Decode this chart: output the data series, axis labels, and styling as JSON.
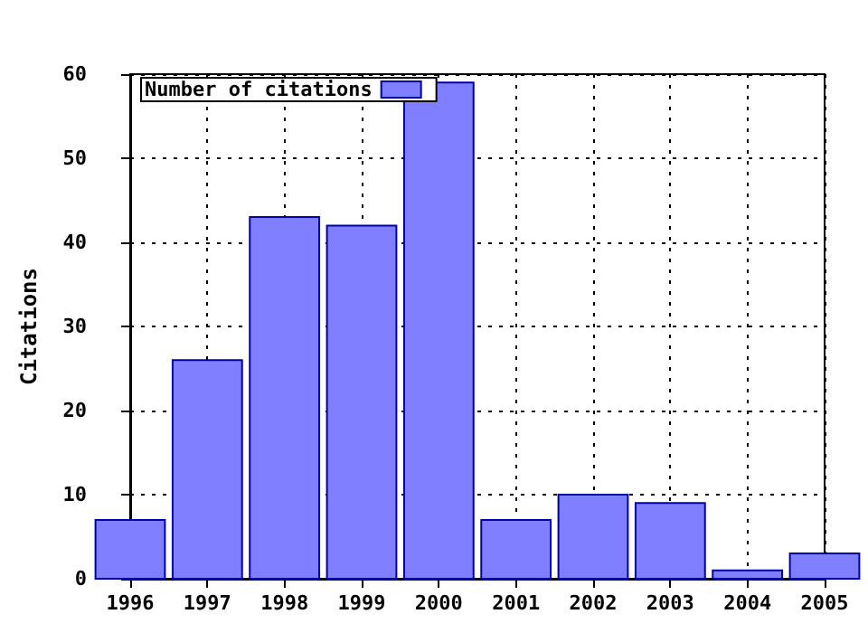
{
  "chart_data": {
    "type": "bar",
    "ylabel": "Citations",
    "x": [
      1996,
      1997,
      1998,
      1999,
      2000,
      2001,
      2002,
      2003,
      2004,
      2005
    ],
    "series": [
      {
        "name": "Number of citations",
        "color": "#7f7fff",
        "values": [
          7,
          26,
          43,
          42,
          59,
          7,
          10,
          9,
          1,
          3
        ]
      }
    ],
    "xlim": [
      1996,
      2005
    ],
    "xticks": [
      1996,
      1997,
      1998,
      1999,
      2000,
      2001,
      2002,
      2003,
      2004,
      2005
    ],
    "ylim": [
      0,
      60
    ],
    "yticks": [
      0,
      10,
      20,
      30,
      40,
      50,
      60
    ],
    "grid": true,
    "legend": "top left"
  }
}
